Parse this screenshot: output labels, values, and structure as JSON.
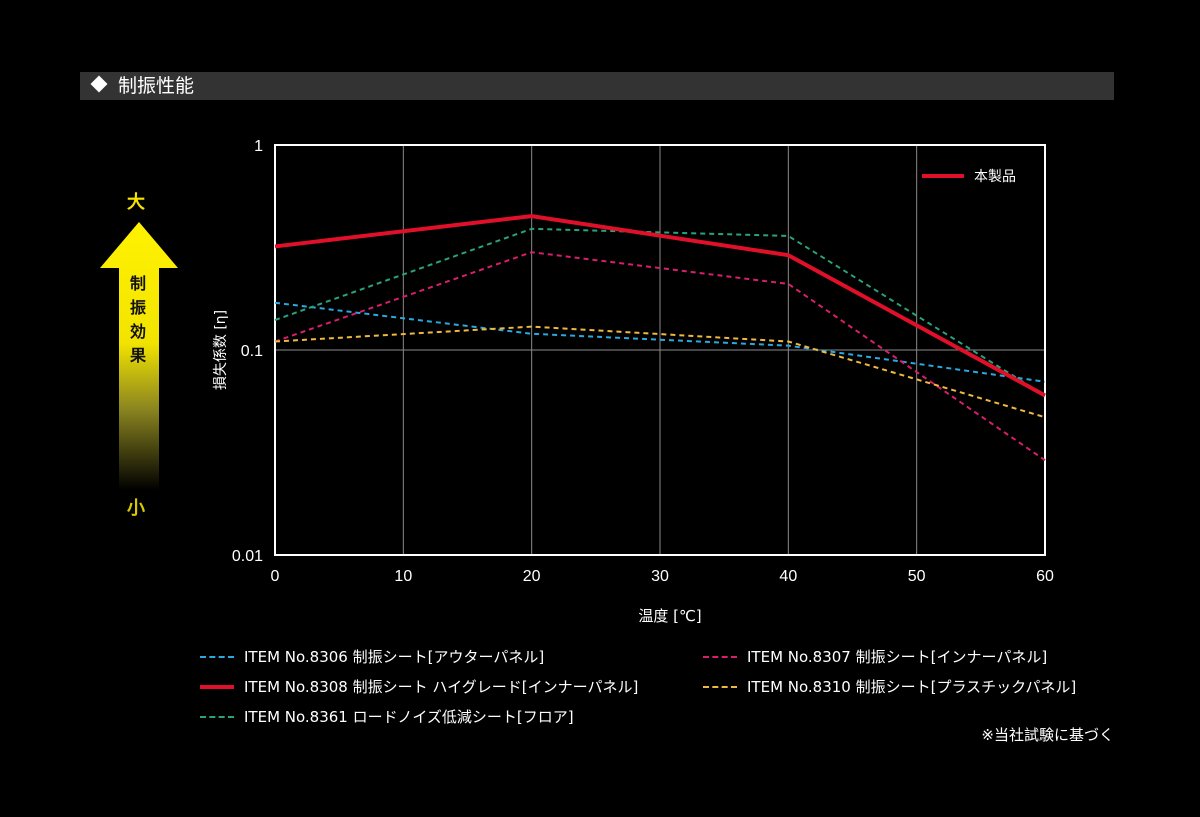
{
  "header": {
    "title": "制振性能"
  },
  "effect_indicator": {
    "top": "大",
    "bottom": "小",
    "label": "制振効果"
  },
  "note": "※当社試験に基づく",
  "chart_data": {
    "type": "line",
    "title": "制振性能",
    "xlabel": "温度 [℃]",
    "ylabel": "損失係数 [η]",
    "x": [
      0,
      20,
      40,
      60
    ],
    "xticks": [
      "0",
      "10",
      "20",
      "30",
      "40",
      "50",
      "60"
    ],
    "yticks": [
      "1",
      "0.1",
      "0.01"
    ],
    "yscale": "log",
    "xlim": [
      0,
      60
    ],
    "ylim": [
      0.01,
      1
    ],
    "grid": true,
    "legend_position": "bottom",
    "inner_legend": "本製品",
    "series": [
      {
        "name": "ITEM No.8306 制振シート[アウターパネル]",
        "values": [
          0.17,
          0.12,
          0.105,
          0.07
        ],
        "color": "#2aa8e0",
        "style": "dashed"
      },
      {
        "name": "ITEM No.8307 制振シート[インナーパネル]",
        "values": [
          0.11,
          0.3,
          0.21,
          0.029
        ],
        "color": "#d81f6a",
        "style": "dashed"
      },
      {
        "name": "ITEM No.8308 制振シート ハイグレード[インナーパネル]",
        "values": [
          0.32,
          0.45,
          0.29,
          0.06
        ],
        "color": "#e0102a",
        "style": "solid"
      },
      {
        "name": "ITEM No.8310 制振シート[プラスチックパネル]",
        "values": [
          0.11,
          0.13,
          0.11,
          0.047
        ],
        "color": "#f0b840",
        "style": "dashed"
      },
      {
        "name": "ITEM No.8361 ロードノイズ低減シート[フロア]",
        "values": [
          0.14,
          0.39,
          0.36,
          0.06
        ],
        "color": "#2aa37a",
        "style": "dashed"
      }
    ]
  }
}
